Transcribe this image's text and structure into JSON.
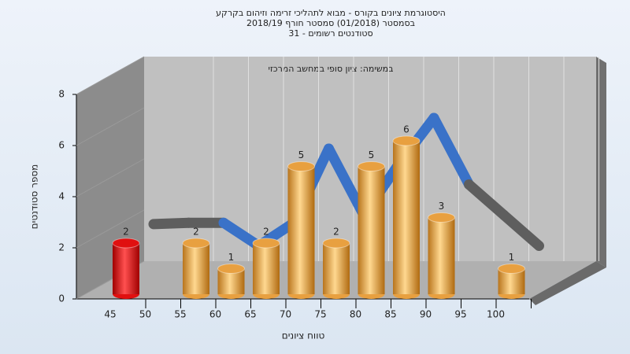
{
  "chart_data": {
    "type": "bar3d",
    "title": [
      "היסטוגרמת ציונים בקורס - מבוא לתהליכי זרימה וזיהום בקרקע",
      "בסמסטר  (01/2018)  סמסטר חורף 2018/19",
      "סטודנטים רשומים - 31"
    ],
    "subtitle": "במשימה: ציון סופי במחשב המרכזי",
    "x_label": "טווח ציונים",
    "y_label": "מספר סטודנטים",
    "categories": [
      "45",
      "50",
      "55",
      "60",
      "65",
      "70",
      "75",
      "80",
      "85",
      "90",
      "95",
      "100"
    ],
    "values": [
      2,
      0,
      2,
      1,
      2,
      5,
      2,
      5,
      6,
      3,
      0,
      1
    ],
    "colors": [
      "#e01010",
      "#e8a040",
      "#e8a040",
      "#e8a040",
      "#e8a040",
      "#e8a040",
      "#e8a040",
      "#e8a040",
      "#e8a040",
      "#e8a040",
      "#e8a040",
      "#e8a040"
    ],
    "curve": {
      "color": "#3a72c8",
      "outer_color": "#5e5e5e",
      "values": [
        1.45,
        1.5,
        1.5,
        0.6,
        1.5,
        4.4,
        1.8,
        3.8,
        5.6,
        3.0,
        1.8,
        0.6
      ]
    },
    "ylim": [
      0,
      8
    ],
    "yticks": [
      0,
      2,
      4,
      6,
      8
    ],
    "grid": true
  }
}
